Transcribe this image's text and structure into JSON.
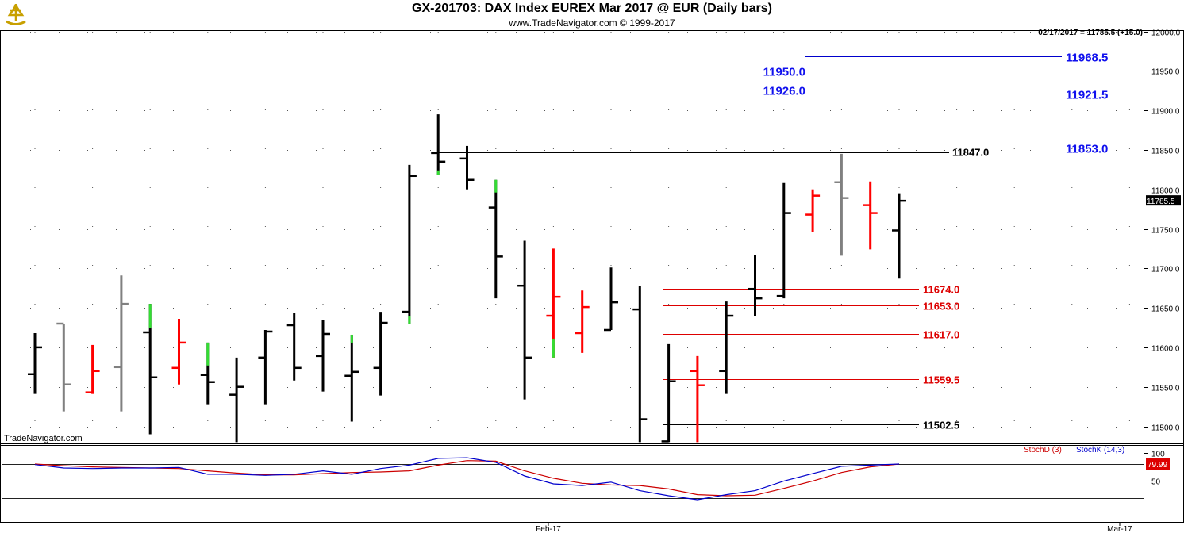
{
  "header": {
    "title": "GX-201703:  DAX Index EUREX Mar 2017 @ EUR  (Daily bars)",
    "subtitle": "www.TradeNavigator.com © 1999-2017",
    "quote": "02/17/2017 = 11785.5 (+15.0)",
    "watermark": "TradeNavigator.com"
  },
  "chart_data": [
    {
      "type": "ohlc",
      "title": "GX-201703:  DAX Index EUREX Mar 2017 @ EUR  (Daily bars)",
      "y_axis": {
        "range": [
          11480,
          12010
        ],
        "ticks": [
          11500,
          11550,
          11600,
          11650,
          11700,
          11750,
          11800,
          11850,
          11900,
          11950,
          12000
        ]
      },
      "x_axis": {
        "labels": [
          "Feb-17",
          "Mar-17"
        ]
      },
      "last_price": "11785.5",
      "bars": [
        {
          "o": 11566,
          "h": 11618,
          "l": 11541,
          "c": 11600,
          "color": "#000000"
        },
        {
          "o": 11630,
          "h": 11630,
          "l": 11519,
          "c": 11553,
          "color": "#808080"
        },
        {
          "o": 11543,
          "h": 11603,
          "l": 11541,
          "c": 11570,
          "color": "#ff0000"
        },
        {
          "o": 11575,
          "h": 11691,
          "l": 11519,
          "c": 11655,
          "color": "#808080"
        },
        {
          "o": 11619,
          "h": 11655,
          "l": 11490,
          "c": 11562,
          "color": "#000000",
          "hi_color": "#33dd33",
          "hi_from": 11625
        },
        {
          "o": 11574,
          "h": 11636,
          "l": 11553,
          "c": 11606,
          "color": "#ff0000"
        },
        {
          "o": 11565,
          "h": 11606,
          "l": 11528,
          "c": 11556,
          "color": "#000000",
          "hi_color": "#33dd33",
          "hi_from": 11577
        },
        {
          "o": 11540,
          "h": 11587,
          "l": 11480,
          "c": 11550,
          "color": "#000000"
        },
        {
          "o": 11587,
          "h": 11622,
          "l": 11528,
          "c": 11620,
          "color": "#000000"
        },
        {
          "o": 11628,
          "h": 11644,
          "l": 11558,
          "c": 11574,
          "color": "#000000"
        },
        {
          "o": 11589,
          "h": 11634,
          "l": 11544,
          "c": 11617,
          "color": "#000000"
        },
        {
          "o": 11564,
          "h": 11616,
          "l": 11506,
          "c": 11569,
          "color": "#000000",
          "hi_color": "#33dd33",
          "hi_from": 11606
        },
        {
          "o": 11574,
          "h": 11645,
          "l": 11539,
          "c": 11631,
          "color": "#000000"
        },
        {
          "o": 11645,
          "h": 11831,
          "l": 11630,
          "c": 11817,
          "color": "#000000",
          "lo_color": "#33dd33",
          "lo_to": 11639
        },
        {
          "o": 11846,
          "h": 11895,
          "l": 11818,
          "c": 11835,
          "color": "#000000",
          "lo_color": "#33dd33",
          "lo_to": 11824
        },
        {
          "o": 11839,
          "h": 11855,
          "l": 11800,
          "c": 11812,
          "color": "#000000"
        },
        {
          "o": 11777,
          "h": 11812,
          "l": 11662,
          "c": 11715,
          "color": "#000000",
          "hi_color": "#33dd33",
          "hi_from": 11796
        },
        {
          "o": 11678,
          "h": 11735,
          "l": 11534,
          "c": 11587,
          "color": "#000000"
        },
        {
          "o": 11640,
          "h": 11725,
          "l": 11587,
          "c": 11664,
          "color": "#ff0000",
          "lo_color": "#33dd33",
          "lo_to": 11611
        },
        {
          "o": 11618,
          "h": 11672,
          "l": 11593,
          "c": 11651,
          "color": "#ff0000"
        },
        {
          "o": 11622,
          "h": 11701,
          "l": 11622,
          "c": 11657,
          "color": "#000000"
        },
        {
          "o": 11648,
          "h": 11678,
          "l": 11478,
          "c": 11509,
          "color": "#000000"
        },
        {
          "o": 11481,
          "h": 11604,
          "l": 11478,
          "c": 11557,
          "color": "#000000"
        },
        {
          "o": 11570,
          "h": 11589,
          "l": 11478,
          "c": 11552,
          "color": "#ff0000"
        },
        {
          "o": 11570,
          "h": 11658,
          "l": 11541,
          "c": 11640,
          "color": "#000000"
        },
        {
          "o": 11674,
          "h": 11717,
          "l": 11639,
          "c": 11662,
          "color": "#000000"
        },
        {
          "o": 11665,
          "h": 11808,
          "l": 11662,
          "c": 11770,
          "color": "#000000"
        },
        {
          "o": 11768,
          "h": 11800,
          "l": 11746,
          "c": 11792,
          "color": "#ff0000"
        },
        {
          "o": 11809,
          "h": 11845,
          "l": 11716,
          "c": 11789,
          "color": "#808080"
        },
        {
          "o": 11780,
          "h": 11810,
          "l": 11724,
          "c": 11770,
          "color": "#ff0000"
        },
        {
          "o": 11748,
          "h": 11795,
          "l": 11687,
          "c": 11785.5,
          "color": "#000000"
        }
      ],
      "resistance_levels": [
        {
          "value": "11968.5",
          "side": "right"
        },
        {
          "value": "11950.0",
          "side": "left"
        },
        {
          "value": "11926.0",
          "side": "left"
        },
        {
          "value": "11921.5",
          "side": "right"
        },
        {
          "value": "11853.0",
          "side": "right"
        }
      ],
      "pivot_level": {
        "value": "11847.0"
      },
      "support_levels": [
        {
          "value": "11674.0",
          "color": "#dd0000"
        },
        {
          "value": "11653.0",
          "color": "#dd0000"
        },
        {
          "value": "11617.0",
          "color": "#dd0000"
        },
        {
          "value": "11559.5",
          "color": "#dd0000"
        },
        {
          "value": "11502.5",
          "color": "#000000"
        }
      ]
    },
    {
      "type": "line",
      "title": "Stochastic",
      "y_axis": {
        "ticks": [
          100,
          50
        ],
        "levels": [
          80,
          20
        ]
      },
      "last_value": "79.99",
      "series": [
        {
          "name": "StochD (3)",
          "color": "#cc0000",
          "values": [
            80,
            77,
            75,
            74,
            73,
            72,
            68,
            64,
            61,
            61,
            63,
            65,
            66,
            68,
            78,
            86,
            85,
            68,
            55,
            46,
            43,
            42,
            36,
            26,
            24,
            25,
            37,
            50,
            65,
            75,
            79.99
          ]
        },
        {
          "name": "StochK (14,3)",
          "color": "#0000cc",
          "values": [
            79,
            73,
            72,
            73,
            73,
            74,
            62,
            62,
            60,
            62,
            68,
            62,
            72,
            78,
            90,
            91,
            83,
            59,
            45,
            42,
            48,
            33,
            24,
            17,
            26,
            33,
            50,
            63,
            76,
            78,
            79.99
          ]
        }
      ]
    }
  ]
}
